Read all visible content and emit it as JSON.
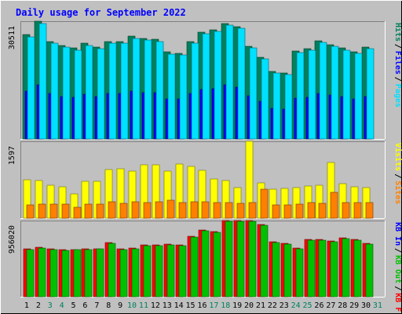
{
  "chart_data": {
    "title": "Daily usage for September 2022",
    "type": "bar",
    "categories": [
      "1",
      "2",
      "3",
      "4",
      "5",
      "6",
      "7",
      "8",
      "9",
      "10",
      "11",
      "12",
      "13",
      "14",
      "15",
      "16",
      "17",
      "18",
      "19",
      "20",
      "21",
      "22",
      "23",
      "24",
      "25",
      "26",
      "27",
      "28",
      "29",
      "30",
      "31"
    ],
    "weekend_days": [
      "3",
      "4",
      "10",
      "11",
      "17",
      "18",
      "24",
      "25",
      "31"
    ],
    "panels": [
      {
        "name": "hits_files_pages",
        "axis_max_label": "30511",
        "axis_max": 30511,
        "side_labels": [
          {
            "text": "Hits",
            "color": "#00805c"
          },
          {
            "text": "Files",
            "color": "#0000ff"
          },
          {
            "text": "Pages",
            "color": "#00e0ff"
          }
        ],
        "series": [
          {
            "name": "Hits",
            "color": "#00805c",
            "values": [
              27000,
              30500,
              25300,
              24300,
              23500,
              24800,
              23800,
              25200,
              25300,
              26600,
              26000,
              25800,
              22500,
              22200,
              25300,
              27600,
              28200,
              30000,
              29100,
              24000,
              21200,
              17500,
              17100,
              22800,
              23400,
              25500,
              24500,
              23500,
              22600,
              23900,
              null
            ]
          },
          {
            "name": "Files",
            "color": "#0000ff",
            "values": [
              12500,
              14000,
              11800,
              11000,
              10800,
              11500,
              11000,
              11800,
              11800,
              12400,
              12100,
              12000,
              10300,
              10300,
              11800,
              12800,
              13100,
              14000,
              13500,
              11100,
              9700,
              8000,
              7800,
              10500,
              10800,
              11800,
              11300,
              10900,
              10400,
              11000,
              null
            ]
          },
          {
            "name": "Pages",
            "color": "#00e0ff",
            "values": [
              26400,
              29800,
              24800,
              23800,
              23000,
              24300,
              23300,
              24800,
              24800,
              26100,
              25600,
              25300,
              22000,
              21700,
              24800,
              27200,
              27800,
              29400,
              28600,
              23500,
              20700,
              17000,
              16600,
              22300,
              22900,
              25000,
              24000,
              23000,
              22100,
              23400,
              null
            ]
          }
        ]
      },
      {
        "name": "sites_visits",
        "axis_max_label": "1597",
        "axis_max": 1597,
        "side_labels": [
          {
            "text": "Visits",
            "color": "#ffff00"
          },
          {
            "text": "Sites",
            "color": "#ff8000"
          }
        ],
        "series": [
          {
            "name": "Visits",
            "color": "#ffff00",
            "values": [
              800,
              780,
              690,
              650,
              500,
              760,
              760,
              1010,
              1020,
              970,
              1110,
              1100,
              970,
              1120,
              1080,
              990,
              810,
              790,
              640,
              1590,
              740,
              600,
              620,
              640,
              670,
              690,
              1150,
              720,
              650,
              640,
              null
            ]
          },
          {
            "name": "Sites",
            "color": "#ff8000",
            "values": [
              280,
              290,
              290,
              290,
              220,
              290,
              300,
              350,
              310,
              340,
              330,
              340,
              380,
              330,
              350,
              340,
              330,
              330,
              310,
              320,
              610,
              280,
              280,
              300,
              320,
              310,
              530,
              330,
              330,
              330,
              null
            ]
          }
        ]
      },
      {
        "name": "kbytes",
        "axis_max_label": "956020",
        "axis_max": 956020,
        "side_labels": [
          {
            "text": "KB In",
            "color": "#0000ff"
          },
          {
            "text": "KB Out",
            "color": "#00c000"
          },
          {
            "text": "KB F",
            "color": "#ff0000"
          }
        ],
        "series": [
          {
            "name": "KB F",
            "color": "#ff0000",
            "values": [
              598000,
              618000,
              600000,
              590000,
              592000,
              600000,
              605000,
              678000,
              600000,
              612000,
              650000,
              652000,
              662000,
              650000,
              758000,
              842000,
              818000,
              956000,
              956000,
              952000,
              908000,
              688000,
              668000,
              610000,
              718000,
              718000,
              698000,
              738000,
              718000,
              670000,
              null
            ]
          },
          {
            "name": "KB Out",
            "color": "#00c000",
            "values": [
              590000,
              608000,
              590000,
              582000,
              588000,
              592000,
              598000,
              668000,
              590000,
              602000,
              640000,
              642000,
              652000,
              640000,
              748000,
              832000,
              808000,
              946000,
              946000,
              942000,
              900000,
              678000,
              658000,
              600000,
              708000,
              708000,
              688000,
              728000,
              708000,
              662000,
              null
            ]
          }
        ]
      }
    ]
  }
}
